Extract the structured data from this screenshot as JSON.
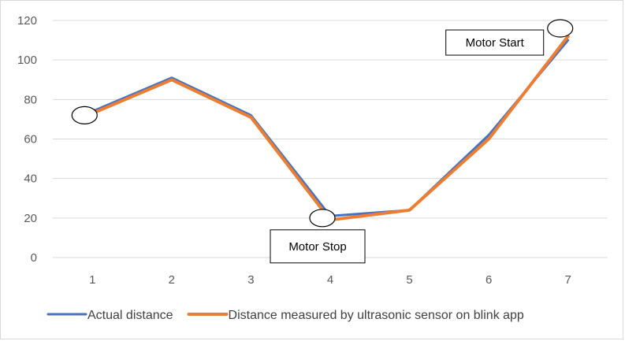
{
  "chart_data": {
    "type": "line",
    "categories": [
      "1",
      "2",
      "3",
      "4",
      "5",
      "6",
      "7"
    ],
    "ylim": [
      0,
      120
    ],
    "yticks": [
      0,
      20,
      40,
      60,
      80,
      100,
      120
    ],
    "grid": true,
    "legend_position": "bottom",
    "series": [
      {
        "name": "Actual distance",
        "color": "#4472c4",
        "values": [
          74,
          91,
          72,
          21,
          24,
          62,
          110
        ]
      },
      {
        "name": "Distance measured by ultrasonic sensor on blink app",
        "color": "#ed7d31",
        "values": [
          73,
          90,
          71,
          19,
          24,
          60,
          112
        ]
      }
    ],
    "annotations": [
      {
        "text": "Motor Start",
        "category": "7",
        "y": 116
      },
      {
        "text": "Motor Stop",
        "category": "4",
        "y": 20
      }
    ],
    "markers": [
      {
        "category": "1",
        "y": 72
      },
      {
        "category": "4",
        "y": 20
      },
      {
        "category": "7",
        "y": 116
      }
    ]
  }
}
